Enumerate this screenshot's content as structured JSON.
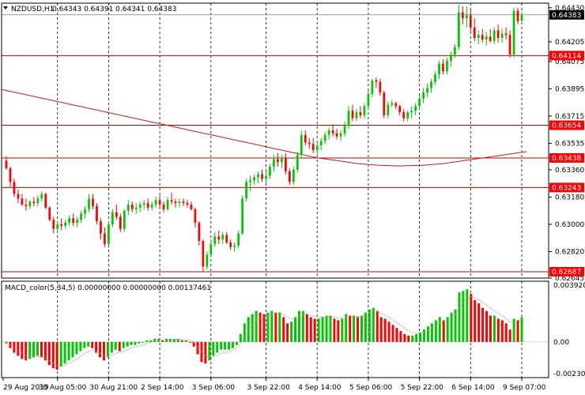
{
  "header": {
    "symbol_label": "NZDUSD,H1",
    "ohlc": "0.64343 0.64391 0.64341 0.64383"
  },
  "macd": {
    "label": "MACD_color(5,34,5) 0.00000000 0.00000000 0.00137461",
    "axis_labels": [
      "0.0039209",
      "0.00",
      "-0.0023083"
    ]
  },
  "price_axis": {
    "labels": [
      "0.64430",
      "0.64205",
      "0.64075",
      "0.63895",
      "0.63715",
      "0.63535",
      "0.63360",
      "0.63180",
      "0.63000",
      "0.62820",
      "0.62645"
    ]
  },
  "price_tags": [
    {
      "value": "0.64383",
      "color": "#000000"
    },
    {
      "value": "0.64114",
      "color": "#ff0000"
    },
    {
      "value": "0.63654",
      "color": "#ff0000"
    },
    {
      "value": "0.63438",
      "color": "#ff0000"
    },
    {
      "value": "0.63243",
      "color": "#ff0000"
    },
    {
      "value": "0.62687",
      "color": "#ff0000"
    }
  ],
  "time_axis": {
    "labels": [
      "29 Aug 2019",
      "30 Aug 05:00",
      "30 Aug 21:00",
      "2 Sep 14:00",
      "3 Sep 06:00",
      "3 Sep 22:00",
      "4 Sep 14:00",
      "5 Sep 06:00",
      "5 Sep 22:00",
      "6 Sep 14:00",
      "9 Sep 07:00"
    ]
  },
  "colors": {
    "bull": "#00c800",
    "bear": "#ff0000",
    "ma": "#c81e1e",
    "level": "#c80000",
    "grid": "#000000"
  },
  "chart_data": {
    "type": "candlestick",
    "symbol": "NZDUSD",
    "timeframe": "H1",
    "ylim": [
      0.62645,
      0.6446
    ],
    "candles": [
      [
        0.6342,
        0.6345,
        0.6336,
        0.6337
      ],
      [
        0.6337,
        0.6338,
        0.6325,
        0.6328
      ],
      [
        0.6328,
        0.633,
        0.6318,
        0.632
      ],
      [
        0.632,
        0.6323,
        0.6314,
        0.6317
      ],
      [
        0.6317,
        0.632,
        0.6312,
        0.6313
      ],
      [
        0.6313,
        0.6317,
        0.6309,
        0.6312
      ],
      [
        0.6312,
        0.6316,
        0.631,
        0.6315
      ],
      [
        0.6315,
        0.6318,
        0.6312,
        0.6314
      ],
      [
        0.6314,
        0.6319,
        0.6312,
        0.6317
      ],
      [
        0.6317,
        0.6322,
        0.6315,
        0.632
      ],
      [
        0.632,
        0.6321,
        0.631,
        0.6311
      ],
      [
        0.6311,
        0.6312,
        0.6302,
        0.6303
      ],
      [
        0.6303,
        0.6305,
        0.6294,
        0.6297
      ],
      [
        0.6297,
        0.6302,
        0.6295,
        0.63
      ],
      [
        0.63,
        0.6304,
        0.6296,
        0.6299
      ],
      [
        0.6299,
        0.6303,
        0.6297,
        0.6301
      ],
      [
        0.6301,
        0.6306,
        0.6299,
        0.6304
      ],
      [
        0.6304,
        0.6307,
        0.6299,
        0.6301
      ],
      [
        0.6301,
        0.6305,
        0.6298,
        0.6303
      ],
      [
        0.6303,
        0.6309,
        0.6301,
        0.6307
      ],
      [
        0.6307,
        0.6312,
        0.6304,
        0.631
      ],
      [
        0.631,
        0.632,
        0.6308,
        0.6317
      ],
      [
        0.6317,
        0.632,
        0.631,
        0.6312
      ],
      [
        0.6312,
        0.6314,
        0.63,
        0.6302
      ],
      [
        0.6302,
        0.6304,
        0.629,
        0.6294
      ],
      [
        0.6294,
        0.6298,
        0.6285,
        0.6287
      ],
      [
        0.6287,
        0.6302,
        0.6286,
        0.63
      ],
      [
        0.63,
        0.631,
        0.6298,
        0.6308
      ],
      [
        0.6308,
        0.6313,
        0.6303,
        0.6305
      ],
      [
        0.6305,
        0.6307,
        0.6295,
        0.6297
      ],
      [
        0.6297,
        0.631,
        0.6295,
        0.6309
      ],
      [
        0.6309,
        0.6316,
        0.6306,
        0.6313
      ],
      [
        0.6313,
        0.6315,
        0.6308,
        0.631
      ],
      [
        0.631,
        0.6314,
        0.6307,
        0.6311
      ],
      [
        0.6311,
        0.6315,
        0.6308,
        0.6313
      ],
      [
        0.6313,
        0.6316,
        0.631,
        0.6314
      ],
      [
        0.6314,
        0.6317,
        0.6309,
        0.6311
      ],
      [
        0.6311,
        0.6315,
        0.6309,
        0.6313
      ],
      [
        0.6313,
        0.6318,
        0.6311,
        0.6316
      ],
      [
        0.6316,
        0.6319,
        0.6311,
        0.6313
      ],
      [
        0.6313,
        0.6315,
        0.6308,
        0.631
      ],
      [
        0.631,
        0.6318,
        0.6309,
        0.6316
      ],
      [
        0.6316,
        0.6321,
        0.6313,
        0.6315
      ],
      [
        0.6315,
        0.6317,
        0.6311,
        0.6314
      ],
      [
        0.6314,
        0.6317,
        0.6311,
        0.6315
      ],
      [
        0.6315,
        0.6317,
        0.6312,
        0.6314
      ],
      [
        0.6314,
        0.6316,
        0.6311,
        0.6313
      ],
      [
        0.6313,
        0.6315,
        0.6309,
        0.631
      ],
      [
        0.631,
        0.6311,
        0.6298,
        0.6301
      ],
      [
        0.6301,
        0.6302,
        0.6286,
        0.6289
      ],
      [
        0.6289,
        0.629,
        0.6269,
        0.6272
      ],
      [
        0.6272,
        0.6282,
        0.627,
        0.628
      ],
      [
        0.628,
        0.629,
        0.6278,
        0.6287
      ],
      [
        0.6287,
        0.6295,
        0.6285,
        0.6292
      ],
      [
        0.6292,
        0.6296,
        0.6287,
        0.629
      ],
      [
        0.629,
        0.6295,
        0.6287,
        0.6293
      ],
      [
        0.6293,
        0.6295,
        0.6287,
        0.6288
      ],
      [
        0.6288,
        0.629,
        0.6283,
        0.6285
      ],
      [
        0.6285,
        0.6288,
        0.6282,
        0.6286
      ],
      [
        0.6286,
        0.6296,
        0.6284,
        0.6294
      ],
      [
        0.6294,
        0.6319,
        0.6293,
        0.6317
      ],
      [
        0.6317,
        0.633,
        0.6315,
        0.6328
      ],
      [
        0.6328,
        0.6332,
        0.6322,
        0.6329
      ],
      [
        0.6329,
        0.6333,
        0.6326,
        0.6331
      ],
      [
        0.6331,
        0.6335,
        0.6327,
        0.6333
      ],
      [
        0.6333,
        0.6336,
        0.6328,
        0.633
      ],
      [
        0.633,
        0.6335,
        0.6327,
        0.6332
      ],
      [
        0.6332,
        0.634,
        0.633,
        0.6338
      ],
      [
        0.6338,
        0.6346,
        0.6335,
        0.6343
      ],
      [
        0.6343,
        0.6347,
        0.6338,
        0.6341
      ],
      [
        0.6341,
        0.6346,
        0.6337,
        0.6344
      ],
      [
        0.6344,
        0.6347,
        0.6333,
        0.6335
      ],
      [
        0.6335,
        0.6337,
        0.6326,
        0.6328
      ],
      [
        0.6328,
        0.6338,
        0.6326,
        0.6336
      ],
      [
        0.6336,
        0.6348,
        0.6334,
        0.6346
      ],
      [
        0.6346,
        0.6362,
        0.6344,
        0.6359
      ],
      [
        0.6359,
        0.6362,
        0.6352,
        0.6354
      ],
      [
        0.6354,
        0.6357,
        0.635,
        0.6353
      ],
      [
        0.6353,
        0.6357,
        0.6347,
        0.6349
      ],
      [
        0.6349,
        0.6354,
        0.6346,
        0.6352
      ],
      [
        0.6352,
        0.6357,
        0.6349,
        0.6355
      ],
      [
        0.6355,
        0.6361,
        0.6353,
        0.6359
      ],
      [
        0.6359,
        0.6364,
        0.6356,
        0.6362
      ],
      [
        0.6362,
        0.6366,
        0.6358,
        0.636
      ],
      [
        0.636,
        0.6363,
        0.6356,
        0.6358
      ],
      [
        0.6358,
        0.6362,
        0.6355,
        0.636
      ],
      [
        0.636,
        0.6368,
        0.6358,
        0.6365
      ],
      [
        0.6365,
        0.6378,
        0.6363,
        0.6375
      ],
      [
        0.6375,
        0.6379,
        0.6368,
        0.637
      ],
      [
        0.637,
        0.6376,
        0.6368,
        0.6374
      ],
      [
        0.6374,
        0.6378,
        0.637,
        0.6372
      ],
      [
        0.6372,
        0.638,
        0.637,
        0.6378
      ],
      [
        0.6378,
        0.6388,
        0.6376,
        0.6386
      ],
      [
        0.6386,
        0.6396,
        0.6384,
        0.6395
      ],
      [
        0.6395,
        0.6397,
        0.639,
        0.6394
      ],
      [
        0.6394,
        0.6396,
        0.6385,
        0.6387
      ],
      [
        0.6387,
        0.6388,
        0.637,
        0.6372
      ],
      [
        0.6372,
        0.6381,
        0.637,
        0.6379
      ],
      [
        0.6379,
        0.6382,
        0.6377,
        0.638
      ],
      [
        0.638,
        0.6381,
        0.6376,
        0.6378
      ],
      [
        0.6378,
        0.6379,
        0.6372,
        0.6374
      ],
      [
        0.6374,
        0.6376,
        0.6368,
        0.637
      ],
      [
        0.637,
        0.6375,
        0.6368,
        0.6374
      ],
      [
        0.6374,
        0.6378,
        0.637,
        0.6375
      ],
      [
        0.6375,
        0.638,
        0.6372,
        0.6378
      ],
      [
        0.6378,
        0.6385,
        0.6376,
        0.6383
      ],
      [
        0.6383,
        0.639,
        0.638,
        0.6387
      ],
      [
        0.6387,
        0.6393,
        0.6384,
        0.639
      ],
      [
        0.639,
        0.6396,
        0.6387,
        0.6394
      ],
      [
        0.6394,
        0.6401,
        0.6392,
        0.6399
      ],
      [
        0.6399,
        0.6408,
        0.6396,
        0.6406
      ],
      [
        0.6406,
        0.6409,
        0.6399,
        0.6401
      ],
      [
        0.6401,
        0.641,
        0.6399,
        0.6408
      ],
      [
        0.6408,
        0.6414,
        0.6404,
        0.6412
      ],
      [
        0.6412,
        0.6419,
        0.641,
        0.6417
      ],
      [
        0.6417,
        0.6445,
        0.6415,
        0.644
      ],
      [
        0.644,
        0.6444,
        0.6432,
        0.6436
      ],
      [
        0.6436,
        0.6444,
        0.643,
        0.6438
      ],
      [
        0.6438,
        0.6442,
        0.6427,
        0.643
      ],
      [
        0.643,
        0.6436,
        0.6421,
        0.6423
      ],
      [
        0.6423,
        0.6428,
        0.6419,
        0.6425
      ],
      [
        0.6425,
        0.6429,
        0.642,
        0.6422
      ],
      [
        0.6422,
        0.6427,
        0.6418,
        0.6424
      ],
      [
        0.6424,
        0.6429,
        0.642,
        0.6421
      ],
      [
        0.6421,
        0.643,
        0.6419,
        0.6428
      ],
      [
        0.6428,
        0.6432,
        0.642,
        0.6423
      ],
      [
        0.6423,
        0.6429,
        0.642,
        0.6426
      ],
      [
        0.6426,
        0.643,
        0.6422,
        0.6425
      ],
      [
        0.6425,
        0.6428,
        0.641,
        0.6412
      ],
      [
        0.6412,
        0.6443,
        0.641,
        0.6441
      ],
      [
        0.6441,
        0.6443,
        0.6432,
        0.6434
      ],
      [
        0.64343,
        0.64391,
        0.64341,
        0.64383
      ]
    ],
    "moving_average": [
      0.6389,
      0.6386,
      0.6383,
      0.638,
      0.6377,
      0.6374,
      0.6371,
      0.6368,
      0.6365,
      0.6362,
      0.6359,
      0.6356,
      0.6353,
      0.635,
      0.6347,
      0.6344,
      0.6342,
      0.634,
      0.6339,
      0.63385,
      0.6339,
      0.634,
      0.6342,
      0.6344,
      0.6346,
      0.6348
    ],
    "horizontal_levels": [
      0.64383,
      0.64114,
      0.63654,
      0.63438,
      0.63243,
      0.62687
    ],
    "macd_histogram": [
      -0.0001,
      -0.0004,
      -0.0007,
      -0.0009,
      -0.0011,
      -0.0012,
      -0.0011,
      -0.001,
      -0.0009,
      -0.001,
      -0.0012,
      -0.0015,
      -0.0017,
      -0.0018,
      -0.0016,
      -0.0014,
      -0.0012,
      -0.001,
      -0.0008,
      -0.0006,
      -0.0004,
      -0.0003,
      -0.0004,
      -0.0007,
      -0.001,
      -0.0012,
      -0.001,
      -0.0007,
      -0.0005,
      -0.0006,
      -0.0004,
      -0.0003,
      -0.0002,
      -0.0002,
      -0.0001,
      0.0,
      0.0001,
      0.0001,
      0.0002,
      0.0002,
      0.0001,
      0.0002,
      0.0002,
      0.0002,
      0.0002,
      0.0001,
      0.0001,
      0.0,
      -0.0003,
      -0.0008,
      -0.0013,
      -0.0014,
      -0.0012,
      -0.0009,
      -0.0007,
      -0.0005,
      -0.0005,
      -0.0005,
      -0.0004,
      -0.0002,
      0.0005,
      0.0012,
      0.0016,
      0.0018,
      0.002,
      0.0019,
      0.0018,
      0.0019,
      0.002,
      0.0019,
      0.0019,
      0.0016,
      0.0012,
      0.0013,
      0.0016,
      0.002,
      0.002,
      0.0018,
      0.0016,
      0.0015,
      0.0015,
      0.0016,
      0.0017,
      0.0017,
      0.0015,
      0.0014,
      0.0015,
      0.0018,
      0.0017,
      0.0017,
      0.0016,
      0.0017,
      0.0019,
      0.0021,
      0.0022,
      0.002,
      0.0016,
      0.0015,
      0.0013,
      0.0011,
      0.0009,
      0.0007,
      0.0005,
      0.0004,
      0.0004,
      0.0005,
      0.0006,
      0.0008,
      0.001,
      0.0012,
      0.0014,
      0.0016,
      0.0014,
      0.0016,
      0.0019,
      0.0021,
      0.0032,
      0.0033,
      0.0034,
      0.0031,
      0.0027,
      0.0025,
      0.0022,
      0.002,
      0.0017,
      0.0017,
      0.0015,
      0.0014,
      0.0012,
      0.0008,
      0.0015,
      0.0014,
      0.0016
    ],
    "macd_ylim": [
      -0.0023083,
      0.0039209
    ]
  }
}
